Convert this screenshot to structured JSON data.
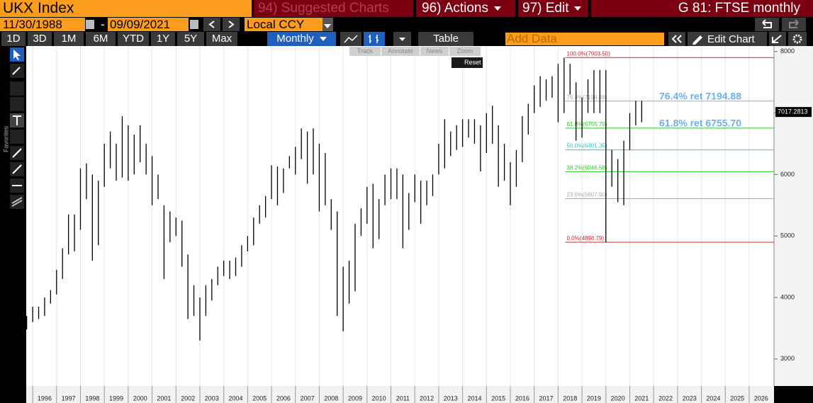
{
  "header": {
    "ticker": "UKX Index",
    "suggested": "94) Suggested Charts",
    "actions": "96) Actions",
    "edit": "97) Edit",
    "title": "G 81: FTSE monthly"
  },
  "dates": {
    "start": "11/30/1988",
    "separator": "-",
    "end": "09/09/2021",
    "currency": "Local CCY"
  },
  "toolbar": {
    "periods": [
      "1D",
      "3D",
      "1M",
      "6M",
      "YTD",
      "1Y",
      "5Y",
      "Max"
    ],
    "frequency": "Monthly",
    "table": "Table",
    "add_data": "Add Data",
    "edit_chart": "Edit Chart"
  },
  "chart_tools": [
    "Track",
    "Annotate",
    "News",
    "Zoom",
    "Reset"
  ],
  "sidebar": "Favorites",
  "chart_data": {
    "type": "range-bar",
    "color": "#000000",
    "xlim": [
      1995.73,
      2027.04
    ],
    "ylim": [
      2560,
      8090
    ],
    "xticks": [
      1996,
      1997,
      1998,
      1999,
      2000,
      2001,
      2002,
      2003,
      2004,
      2005,
      2006,
      2007,
      2008,
      2009,
      2010,
      2011,
      2012,
      2013,
      2014,
      2015,
      2016,
      2017,
      2018,
      2019,
      2020,
      2021,
      2022,
      2023,
      2024,
      2025,
      2026
    ],
    "yticks": [
      3000,
      4000,
      5000,
      6000,
      7000,
      8000
    ],
    "grid": true,
    "x": [
      1995.75,
      1996,
      1996.25,
      1996.5,
      1996.75,
      1997,
      1997.25,
      1997.5,
      1997.75,
      1998,
      1998.25,
      1998.5,
      1998.75,
      1999,
      1999.25,
      1999.5,
      1999.75,
      2000,
      2000.25,
      2000.5,
      2000.75,
      2001,
      2001.25,
      2001.5,
      2001.75,
      2002,
      2002.25,
      2002.5,
      2002.75,
      2003,
      2003.25,
      2003.5,
      2003.75,
      2004,
      2004.25,
      2004.5,
      2004.75,
      2005,
      2005.25,
      2005.5,
      2005.75,
      2006,
      2006.25,
      2006.5,
      2006.75,
      2007,
      2007.25,
      2007.5,
      2007.75,
      2008,
      2008.25,
      2008.5,
      2008.75,
      2009,
      2009.25,
      2009.5,
      2009.75,
      2010,
      2010.25,
      2010.5,
      2010.75,
      2011,
      2011.25,
      2011.5,
      2011.75,
      2012,
      2012.25,
      2012.5,
      2012.75,
      2013,
      2013.25,
      2013.5,
      2013.75,
      2014,
      2014.25,
      2014.5,
      2014.75,
      2015,
      2015.25,
      2015.5,
      2015.75,
      2016,
      2016.25,
      2016.5,
      2016.75,
      2017,
      2017.25,
      2017.5,
      2017.75,
      2018,
      2018.25,
      2018.5,
      2018.75,
      2019,
      2019.25,
      2019.5,
      2019.75,
      2020,
      2020.25,
      2020.5,
      2020.75,
      2021,
      2021.25,
      2021.5
    ],
    "low": [
      3480,
      3600,
      3650,
      3700,
      3900,
      4050,
      4300,
      4700,
      4750,
      5100,
      5600,
      4600,
      4850,
      5800,
      6100,
      5900,
      5950,
      5900,
      6000,
      6200,
      6000,
      5500,
      5600,
      4300,
      4900,
      5000,
      4500,
      3650,
      3700,
      3300,
      3700,
      3950,
      4200,
      4350,
      4300,
      4350,
      4500,
      4750,
      4850,
      5200,
      5300,
      5600,
      5500,
      5700,
      6100,
      6000,
      6250,
      5850,
      6000,
      5400,
      5500,
      5100,
      3700,
      3450,
      3900,
      4100,
      5000,
      5200,
      4800,
      4950,
      5500,
      5600,
      5600,
      4800,
      5100,
      5550,
      5200,
      5500,
      5650,
      6000,
      6100,
      6300,
      6400,
      6450,
      6600,
      6500,
      6050,
      6350,
      6500,
      5800,
      5900,
      5500,
      5800,
      6200,
      6650,
      7000,
      7100,
      7200,
      7250,
      6850,
      7000,
      7300,
      6550,
      6600,
      7000,
      7000,
      7000,
      4900,
      5800,
      5550,
      5500,
      6400,
      6800,
      6850
    ],
    "high": [
      3700,
      3850,
      3850,
      4000,
      4120,
      4450,
      4800,
      5350,
      5350,
      6100,
      6180,
      6000,
      5900,
      6500,
      6700,
      6500,
      6950,
      6800,
      6650,
      6800,
      6500,
      6300,
      6000,
      5500,
      5400,
      5300,
      5250,
      4700,
      4200,
      4000,
      4200,
      4300,
      4500,
      4600,
      4600,
      4650,
      4850,
      5000,
      5300,
      5500,
      5650,
      6150,
      6130,
      6100,
      6300,
      6450,
      6750,
      6700,
      6750,
      6500,
      6350,
      5600,
      5400,
      4500,
      4600,
      5200,
      5450,
      5800,
      5850,
      5600,
      6000,
      6100,
      6100,
      6000,
      5700,
      6000,
      5900,
      5900,
      6000,
      6500,
      6900,
      6700,
      6800,
      6900,
      6900,
      6900,
      6800,
      7000,
      7120,
      6800,
      6500,
      6200,
      6400,
      6950,
      7150,
      7450,
      7600,
      7550,
      7600,
      7800,
      7900,
      7800,
      7500,
      7250,
      7550,
      7700,
      7700,
      7700,
      6400,
      6250,
      6550,
      7000,
      7200,
      7200
    ],
    "last_price": 7017.2813,
    "levels": [
      {
        "label": "100.0%(7903.50)",
        "value": 7903.5,
        "xstart": 2018.3,
        "color": "#e02020"
      },
      {
        "label": "76.4%(7194.88)",
        "value": 7194.88,
        "xstart": 2018.3,
        "color": "#a8a8a8"
      },
      {
        "label": "61.8%(6755.70)",
        "value": 6755.7,
        "xstart": 2018.3,
        "color": "#22cc22"
      },
      {
        "label": "50.0%(6401.35)",
        "value": 6401.35,
        "xstart": 2018.3,
        "color": "#22cccc"
      },
      {
        "label": "38.2%(6046.58)",
        "value": 6046.58,
        "xstart": 2018.3,
        "color": "#22cc22"
      },
      {
        "label": "23.6%(5607.90)",
        "value": 5607.9,
        "xstart": 2018.3,
        "color": "#a8a8a8"
      },
      {
        "label": "0.0%(4898.79)",
        "value": 4898.79,
        "xstart": 2018.3,
        "color": "#e02020"
      }
    ],
    "annotations": [
      {
        "text": "76.4% ret 7194.88",
        "value": 7194.88,
        "color": "#6ab0f0"
      },
      {
        "text": "61.8% ret 6755.70",
        "value": 6755.7,
        "color": "#6ab0f0"
      }
    ]
  }
}
